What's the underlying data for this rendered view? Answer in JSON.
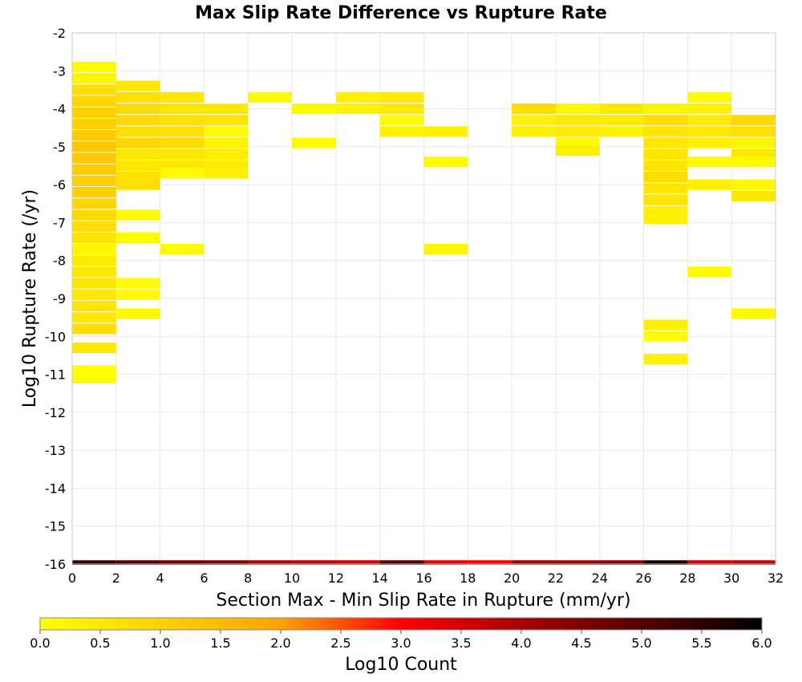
{
  "chart_data": {
    "type": "heatmap",
    "title": "Max Slip Rate Difference vs Rupture Rate",
    "xlabel": "Section Max - Min Slip Rate in Rupture (mm/yr)",
    "ylabel": "Log10 Rupture Rate (/yr)",
    "xlim": [
      0,
      32
    ],
    "ylim": [
      -16,
      -2
    ],
    "x_bin_width": 2,
    "y_bin_width": 0.28,
    "x_ticks": [
      "0",
      "2",
      "4",
      "6",
      "8",
      "10",
      "12",
      "14",
      "16",
      "18",
      "20",
      "22",
      "24",
      "26",
      "28",
      "30",
      "32"
    ],
    "y_ticks": [
      "-2",
      "-3",
      "-4",
      "-5",
      "-6",
      "-7",
      "-8",
      "-9",
      "-10",
      "-11",
      "-12",
      "-13",
      "-14",
      "-15",
      "-16"
    ],
    "colorbar": {
      "label": "Log10 Count",
      "range": [
        0,
        6
      ],
      "ticks": [
        "0.0",
        "0.5",
        "1.0",
        "1.5",
        "2.0",
        "2.5",
        "3.0",
        "3.5",
        "4.0",
        "4.5",
        "5.0",
        "5.5",
        "6.0"
      ],
      "colors": [
        "#ffff00",
        "#ffa500",
        "#ff0000",
        "#000000"
      ]
    },
    "cells": [
      {
        "x": 1,
        "y": -2.9,
        "v": 0.1
      },
      {
        "x": 1,
        "y": -3.2,
        "v": 0.25
      },
      {
        "x": 1,
        "y": -3.5,
        "v": 0.7
      },
      {
        "x": 1,
        "y": -3.8,
        "v": 0.95
      },
      {
        "x": 1,
        "y": -4.1,
        "v": 1.05
      },
      {
        "x": 1,
        "y": -4.4,
        "v": 1.1
      },
      {
        "x": 1,
        "y": -4.7,
        "v": 1.2
      },
      {
        "x": 1,
        "y": -5.0,
        "v": 1.25
      },
      {
        "x": 1,
        "y": -5.3,
        "v": 1.2
      },
      {
        "x": 1,
        "y": -5.6,
        "v": 1.15
      },
      {
        "x": 1,
        "y": -5.9,
        "v": 1.1
      },
      {
        "x": 1,
        "y": -6.2,
        "v": 1.05
      },
      {
        "x": 1,
        "y": -6.5,
        "v": 0.95
      },
      {
        "x": 1,
        "y": -6.8,
        "v": 0.85
      },
      {
        "x": 1,
        "y": -7.1,
        "v": 0.75
      },
      {
        "x": 1,
        "y": -7.4,
        "v": 0.65
      },
      {
        "x": 1,
        "y": -7.7,
        "v": 0.2
      },
      {
        "x": 1,
        "y": -8.0,
        "v": 0.45
      },
      {
        "x": 1,
        "y": -8.3,
        "v": 0.55
      },
      {
        "x": 1,
        "y": -8.6,
        "v": 0.55
      },
      {
        "x": 1,
        "y": -8.9,
        "v": 0.5
      },
      {
        "x": 1,
        "y": -9.2,
        "v": 0.6
      },
      {
        "x": 1,
        "y": -9.5,
        "v": 0.5
      },
      {
        "x": 1,
        "y": -9.8,
        "v": 0.75
      },
      {
        "x": 1,
        "y": -10.3,
        "v": 0.5
      },
      {
        "x": 1,
        "y": -10.9,
        "v": 0.05
      },
      {
        "x": 1,
        "y": -11.1,
        "v": 0.05
      },
      {
        "x": 3,
        "y": -3.4,
        "v": 0.5
      },
      {
        "x": 3,
        "y": -3.7,
        "v": 0.7
      },
      {
        "x": 3,
        "y": -4.0,
        "v": 0.8
      },
      {
        "x": 3,
        "y": -4.3,
        "v": 0.85
      },
      {
        "x": 3,
        "y": -4.6,
        "v": 0.7
      },
      {
        "x": 3,
        "y": -4.9,
        "v": 0.9
      },
      {
        "x": 3,
        "y": -5.2,
        "v": 0.5
      },
      {
        "x": 3,
        "y": -5.5,
        "v": 0.55
      },
      {
        "x": 3,
        "y": -5.8,
        "v": 0.65
      },
      {
        "x": 3,
        "y": -6.0,
        "v": 0.7
      },
      {
        "x": 3,
        "y": -6.8,
        "v": 0.1
      },
      {
        "x": 3,
        "y": -7.4,
        "v": 0.1
      },
      {
        "x": 3,
        "y": -8.6,
        "v": 0.05
      },
      {
        "x": 3,
        "y": -8.9,
        "v": 0.05
      },
      {
        "x": 3,
        "y": -9.4,
        "v": 0.1
      },
      {
        "x": 5,
        "y": -3.7,
        "v": 0.5
      },
      {
        "x": 5,
        "y": -4.0,
        "v": 0.55
      },
      {
        "x": 5,
        "y": -4.3,
        "v": 0.65
      },
      {
        "x": 5,
        "y": -4.6,
        "v": 0.65
      },
      {
        "x": 5,
        "y": -4.9,
        "v": 0.75
      },
      {
        "x": 5,
        "y": -5.2,
        "v": 0.55
      },
      {
        "x": 5,
        "y": -5.5,
        "v": 0.5
      },
      {
        "x": 5,
        "y": -5.7,
        "v": 0.1
      },
      {
        "x": 5,
        "y": -7.7,
        "v": 0.1
      },
      {
        "x": 7,
        "y": -4.0,
        "v": 0.5
      },
      {
        "x": 7,
        "y": -4.3,
        "v": 0.6
      },
      {
        "x": 7,
        "y": -4.6,
        "v": 0.1
      },
      {
        "x": 7,
        "y": -4.9,
        "v": 0.25
      },
      {
        "x": 7,
        "y": -5.2,
        "v": 0.4
      },
      {
        "x": 7,
        "y": -5.5,
        "v": 0.45
      },
      {
        "x": 7,
        "y": -5.7,
        "v": 0.35
      },
      {
        "x": 9,
        "y": -3.7,
        "v": 0.1
      },
      {
        "x": 11,
        "y": -4.0,
        "v": 0.1
      },
      {
        "x": 11,
        "y": -4.9,
        "v": 0.1
      },
      {
        "x": 13,
        "y": -3.7,
        "v": 0.3
      },
      {
        "x": 13,
        "y": -4.0,
        "v": 0.3
      },
      {
        "x": 15,
        "y": -3.7,
        "v": 0.45
      },
      {
        "x": 15,
        "y": -4.0,
        "v": 0.45
      },
      {
        "x": 15,
        "y": -4.3,
        "v": 0.1
      },
      {
        "x": 15,
        "y": -4.6,
        "v": 0.3
      },
      {
        "x": 17,
        "y": -4.6,
        "v": 0.3
      },
      {
        "x": 17,
        "y": -5.4,
        "v": 0.1
      },
      {
        "x": 17,
        "y": -7.7,
        "v": 0.2
      },
      {
        "x": 21,
        "y": -4.0,
        "v": 0.75
      },
      {
        "x": 21,
        "y": -4.3,
        "v": 0.3
      },
      {
        "x": 21,
        "y": -4.6,
        "v": 0.3
      },
      {
        "x": 23,
        "y": -4.0,
        "v": 0.15
      },
      {
        "x": 23,
        "y": -4.3,
        "v": 0.5
      },
      {
        "x": 23,
        "y": -4.6,
        "v": 0.45
      },
      {
        "x": 23,
        "y": -4.9,
        "v": 0.1
      },
      {
        "x": 23,
        "y": -5.1,
        "v": 0.35
      },
      {
        "x": 25,
        "y": -4.0,
        "v": 0.5
      },
      {
        "x": 25,
        "y": -4.3,
        "v": 0.45
      },
      {
        "x": 25,
        "y": -4.6,
        "v": 0.3
      },
      {
        "x": 27,
        "y": -4.0,
        "v": 0.25
      },
      {
        "x": 27,
        "y": -4.3,
        "v": 0.75
      },
      {
        "x": 27,
        "y": -4.6,
        "v": 0.6
      },
      {
        "x": 27,
        "y": -4.9,
        "v": 0.55
      },
      {
        "x": 27,
        "y": -5.2,
        "v": 0.55
      },
      {
        "x": 27,
        "y": -5.5,
        "v": 0.6
      },
      {
        "x": 27,
        "y": -5.8,
        "v": 0.75
      },
      {
        "x": 27,
        "y": -6.1,
        "v": 0.55
      },
      {
        "x": 27,
        "y": -6.4,
        "v": 0.6
      },
      {
        "x": 27,
        "y": -6.7,
        "v": 0.35
      },
      {
        "x": 27,
        "y": -6.9,
        "v": 0.35
      },
      {
        "x": 27,
        "y": -9.7,
        "v": 0.35
      },
      {
        "x": 27,
        "y": -10.0,
        "v": 0.1
      },
      {
        "x": 27,
        "y": -10.6,
        "v": 0.3
      },
      {
        "x": 29,
        "y": -3.7,
        "v": 0.1
      },
      {
        "x": 29,
        "y": -4.0,
        "v": 0.35
      },
      {
        "x": 29,
        "y": -4.3,
        "v": 0.45
      },
      {
        "x": 29,
        "y": -4.6,
        "v": 0.5
      },
      {
        "x": 29,
        "y": -4.9,
        "v": 0.3
      },
      {
        "x": 29,
        "y": -5.4,
        "v": 0.1
      },
      {
        "x": 29,
        "y": -6.0,
        "v": 0.3
      },
      {
        "x": 29,
        "y": -8.3,
        "v": 0.1
      },
      {
        "x": 31,
        "y": -4.3,
        "v": 0.85
      },
      {
        "x": 31,
        "y": -4.6,
        "v": 0.7
      },
      {
        "x": 31,
        "y": -4.9,
        "v": 0.25
      },
      {
        "x": 31,
        "y": -5.2,
        "v": 0.5
      },
      {
        "x": 31,
        "y": -5.4,
        "v": 0.1
      },
      {
        "x": 31,
        "y": -6.0,
        "v": 0.15
      },
      {
        "x": 31,
        "y": -6.3,
        "v": 0.5
      },
      {
        "x": 31,
        "y": -9.4,
        "v": 0.1
      }
    ],
    "total_row": {
      "y": -16,
      "values": [
        5.2,
        5.0,
        4.6,
        4.4,
        3.8,
        3.6,
        3.4,
        5.0,
        3.2,
        3.0,
        4.0,
        4.1,
        4.3,
        5.6,
        3.4,
        3.6
      ]
    }
  }
}
